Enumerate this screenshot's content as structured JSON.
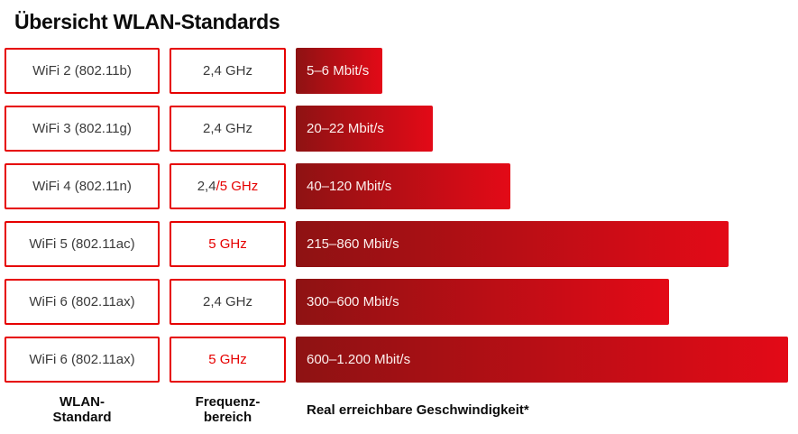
{
  "title": "Übersicht WLAN-Standards",
  "colors": {
    "brand_red": "#e60000",
    "bar_gradient_start": "#8e1213",
    "bar_gradient_end": "#e30a17",
    "box_text": "#3a3a3a",
    "bar_text": "#fcf0ee",
    "heading_text": "#0c0c0c"
  },
  "chart_data": {
    "type": "bar",
    "title": "Übersicht WLAN-Standards",
    "unit": "Mbit/s",
    "orientation": "horizontal",
    "rows": [
      {
        "standard": "WiFi 2 (802.11b)",
        "frequency_parts": [
          {
            "text": "2,4 GHz",
            "red": false
          }
        ],
        "speed_label": "5–6 Mbit/s",
        "speed_min_mbit": 5,
        "speed_max_mbit": 6,
        "bar_width_pct": 17.6
      },
      {
        "standard": "WiFi 3 (802.11g)",
        "frequency_parts": [
          {
            "text": "2,4 GHz",
            "red": false
          }
        ],
        "speed_label": "20–22 Mbit/s",
        "speed_min_mbit": 20,
        "speed_max_mbit": 22,
        "bar_width_pct": 27.8
      },
      {
        "standard": "WiFi 4 (802.11n)",
        "frequency_parts": [
          {
            "text": "2,4",
            "red": false
          },
          {
            "text": "/5 GHz",
            "red": true
          }
        ],
        "speed_label": "40–120 Mbit/s",
        "speed_min_mbit": 40,
        "speed_max_mbit": 120,
        "bar_width_pct": 43.6
      },
      {
        "standard": "WiFi 5 (802.11ac)",
        "frequency_parts": [
          {
            "text": "5 GHz",
            "red": true
          }
        ],
        "speed_label": "215–860 Mbit/s",
        "speed_min_mbit": 215,
        "speed_max_mbit": 860,
        "bar_width_pct": 87.9
      },
      {
        "standard": "WiFi 6 (802.11ax)",
        "frequency_parts": [
          {
            "text": "2,4 GHz",
            "red": false
          }
        ],
        "speed_label": "300–600 Mbit/s",
        "speed_min_mbit": 300,
        "speed_max_mbit": 600,
        "bar_width_pct": 75.8
      },
      {
        "standard": "WiFi 6 (802.11ax)",
        "frequency_parts": [
          {
            "text": "5 GHz",
            "red": true
          }
        ],
        "speed_label": "600–1.200 Mbit/s",
        "speed_min_mbit": 600,
        "speed_max_mbit": 1200,
        "bar_width_pct": 100
      }
    ],
    "column_labels": {
      "standard_line1": "WLAN-",
      "standard_line2": "Standard",
      "frequency_line1": "Frequenz-",
      "frequency_line2": "bereich",
      "speed": "Real erreichbare Geschwindigkeit*"
    }
  }
}
